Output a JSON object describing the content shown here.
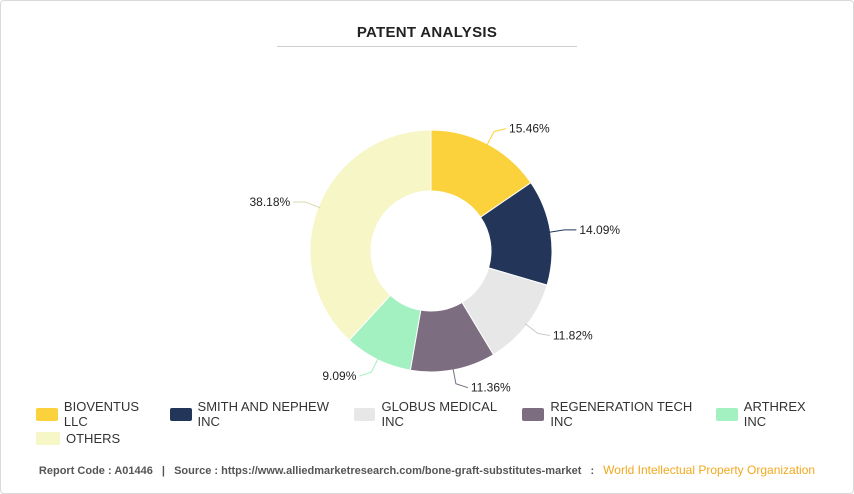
{
  "title": "PATENT ANALYSIS",
  "chart_data": {
    "type": "pie",
    "donut": true,
    "title": "PATENT ANALYSIS",
    "series": [
      {
        "name": "BIOVENTUS LLC",
        "value": 15.46,
        "label": "15.46%",
        "color": "#fcd23c"
      },
      {
        "name": "SMITH AND NEPHEW INC",
        "value": 14.09,
        "label": "14.09%",
        "color": "#233659"
      },
      {
        "name": "GLOBUS MEDICAL INC",
        "value": 11.82,
        "label": "11.82%",
        "color": "#e7e7e7"
      },
      {
        "name": "REGENERATION TECH INC",
        "value": 11.36,
        "label": "11.36%",
        "color": "#7d6d80"
      },
      {
        "name": "ARTHREX INC",
        "value": 9.09,
        "label": "9.09%",
        "color": "#a3f0c1"
      },
      {
        "name": "OTHERS",
        "value": 38.18,
        "label": "38.18%",
        "color": "#f6f6c6"
      }
    ],
    "legend": "bottom"
  },
  "footer": {
    "report_code_label": "Report Code :",
    "report_code": "A01446",
    "source_label": "Source :",
    "source_url": "https://www.alliedmarketresearch.com/bone-graft-substitutes-market",
    "source_name": "World Intellectual Property Organization"
  }
}
